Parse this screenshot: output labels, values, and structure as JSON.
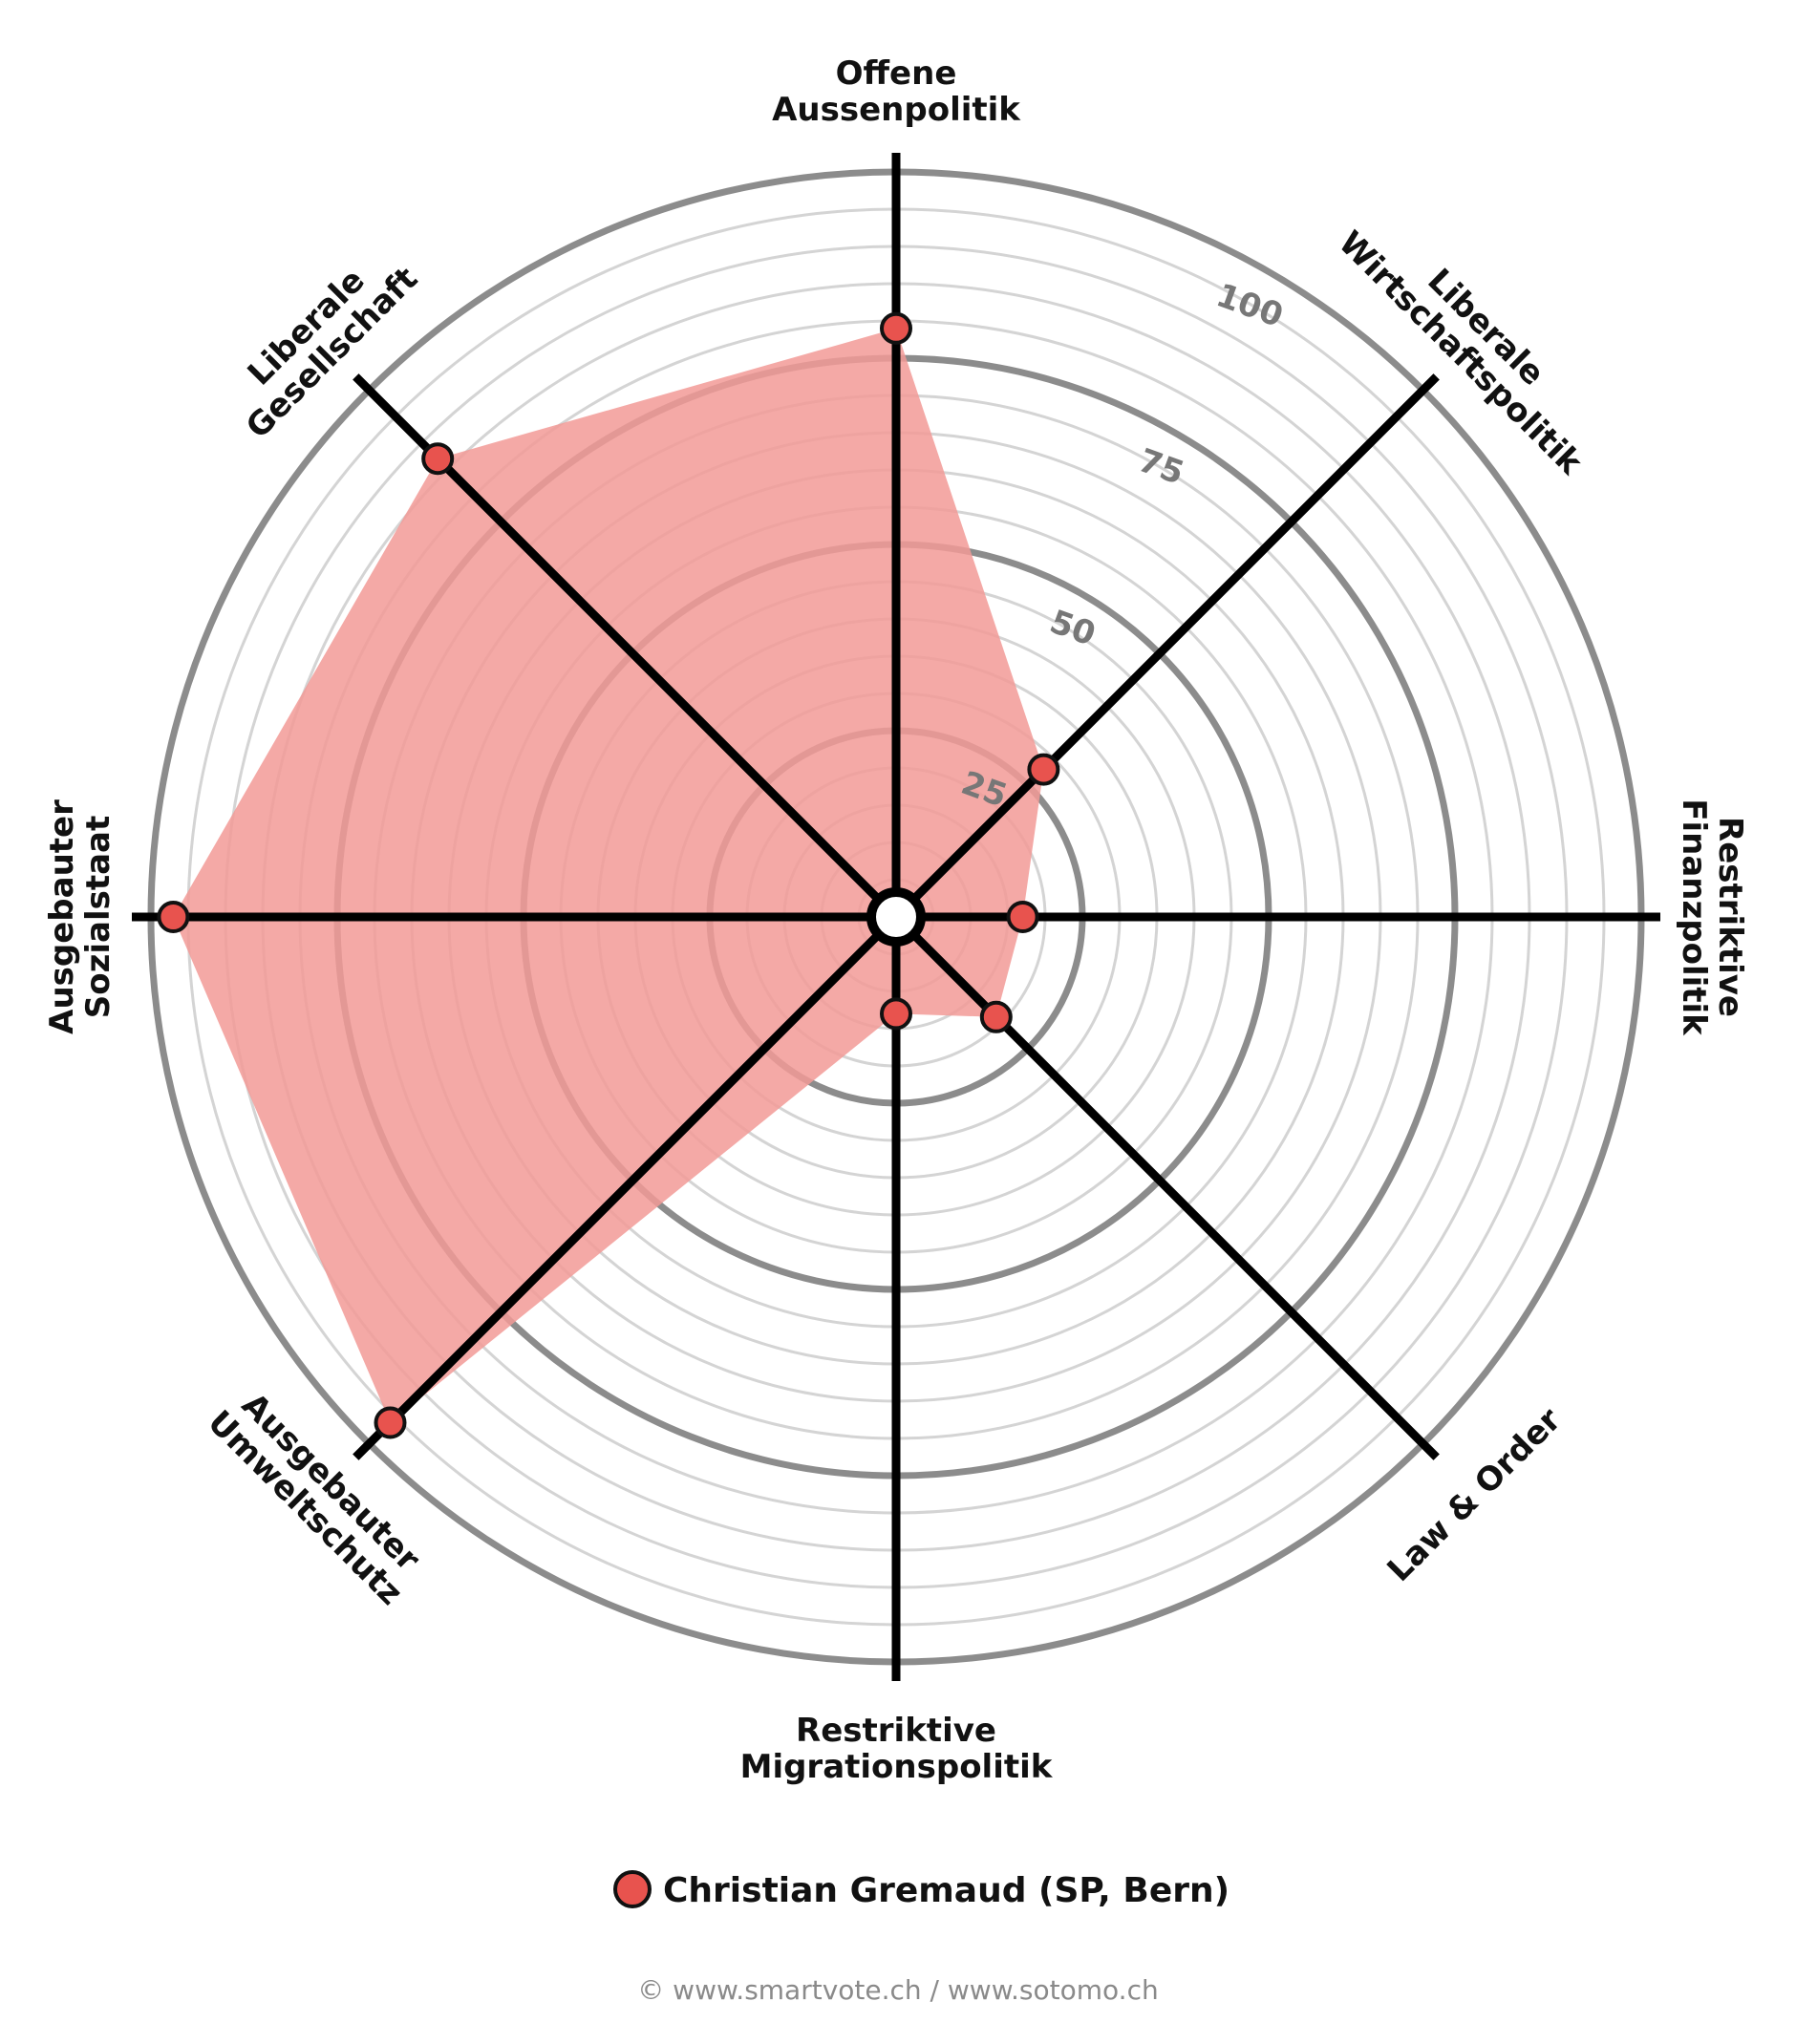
{
  "chart_data": {
    "type": "radar",
    "axes": [
      "Offene Aussenpolitik",
      "Liberale Wirtschaftspolitik",
      "Restriktive Finanzpolitik",
      "Law & Order",
      "Restriktive Migrationspolitik",
      "Ausgebauter Umweltschutz",
      "Ausgebauter Sozialstaat",
      "Liberale Gesellschaft"
    ],
    "axis_label_lines": [
      [
        "Offene",
        "Aussenpolitik"
      ],
      [
        "Liberale",
        "Wirtschaftspolitik"
      ],
      [
        "Restriktive",
        "Finanzpolitik"
      ],
      [
        "Law & Order"
      ],
      [
        "Restriktive",
        "Migrationspolitik"
      ],
      [
        "Ausgebauter",
        "Umweltschutz"
      ],
      [
        "Ausgebauter",
        "Sozialstaat"
      ],
      [
        "Liberale",
        "Gesellschaft"
      ]
    ],
    "series": [
      {
        "name": "Christian Gremaud (SP, Bern)",
        "values": [
          79,
          28,
          17,
          19,
          13,
          96,
          97,
          87
        ]
      }
    ],
    "range": [
      0,
      100
    ],
    "ticks": [
      25,
      50,
      75,
      100
    ],
    "tick_labels": [
      "25",
      "50",
      "75",
      "100"
    ],
    "minor_gridlines_step": 5,
    "legend_position": "bottom",
    "colors": {
      "fill": "#f29a96",
      "marker": "#e8534e",
      "axis": "#000000",
      "major_grid": "#8c8c8c",
      "minor_grid": "#d4d4d4"
    }
  },
  "footer": "© www.smartvote.ch / www.sotomo.ch"
}
